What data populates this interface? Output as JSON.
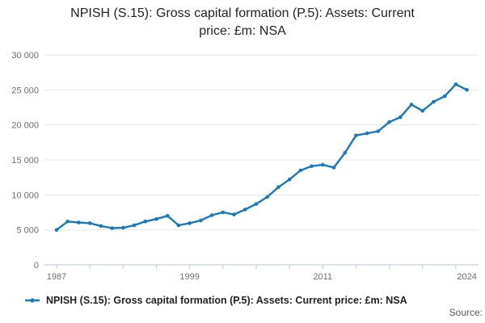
{
  "title": {
    "line1": "NPISH (S.15): Gross capital formation (P.5): Assets: Current",
    "line2": "price: £m: NSA"
  },
  "legend": {
    "label": "NPISH (S.15): Gross capital formation (P.5): Assets: Current price: £m: NSA"
  },
  "footer": {
    "source_label": "Source:"
  },
  "colors": {
    "line": "#1878be",
    "gridline": "#e6e6e6",
    "axis": "#b9c7db",
    "tick_label": "#6e6e6e"
  },
  "chart_data": {
    "type": "line",
    "title": "NPISH (S.15): Gross capital formation (P.5): Assets: Current price: £m: NSA",
    "x": [
      1987,
      1988,
      1989,
      1990,
      1991,
      1992,
      1993,
      1994,
      1995,
      1996,
      1997,
      1998,
      1999,
      2000,
      2001,
      2002,
      2003,
      2004,
      2005,
      2006,
      2007,
      2008,
      2009,
      2010,
      2011,
      2012,
      2013,
      2014,
      2015,
      2016,
      2017,
      2018,
      2019,
      2020,
      2021,
      2022,
      2023,
      2024
    ],
    "series": [
      {
        "name": "NPISH (S.15): Gross capital formation (P.5): Assets: Current price: £m: NSA",
        "values": [
          5000,
          6200,
          6050,
          5950,
          5550,
          5250,
          5300,
          5650,
          6200,
          6550,
          7000,
          5650,
          5950,
          6350,
          7100,
          7500,
          7200,
          7900,
          8700,
          9700,
          11100,
          12200,
          13500,
          14100,
          14300,
          13900,
          16000,
          18500,
          18800,
          19100,
          20400,
          21100,
          22900,
          22000,
          23300,
          24100,
          25800,
          25000
        ]
      }
    ],
    "xlabel": "",
    "ylabel": "",
    "xlim": [
      1987,
      2024
    ],
    "ylim": [
      0,
      30000
    ],
    "y_ticks": [
      0,
      5000,
      10000,
      15000,
      20000,
      25000,
      30000
    ],
    "y_tick_labels": [
      "0",
      "5 000",
      "10 000",
      "15 000",
      "20 000",
      "25 000",
      "30 000"
    ],
    "x_minor_ticks": [
      1987,
      1990,
      1993,
      1996,
      1999,
      2002,
      2005,
      2008,
      2011,
      2014,
      2017,
      2020,
      2023
    ],
    "x_label_years": [
      1987,
      1999,
      2011,
      2024
    ],
    "x_tick_labels": [
      "1987",
      "1999",
      "2011",
      "2024"
    ],
    "grid": true,
    "legend_position": "bottom",
    "marker": "dot"
  }
}
